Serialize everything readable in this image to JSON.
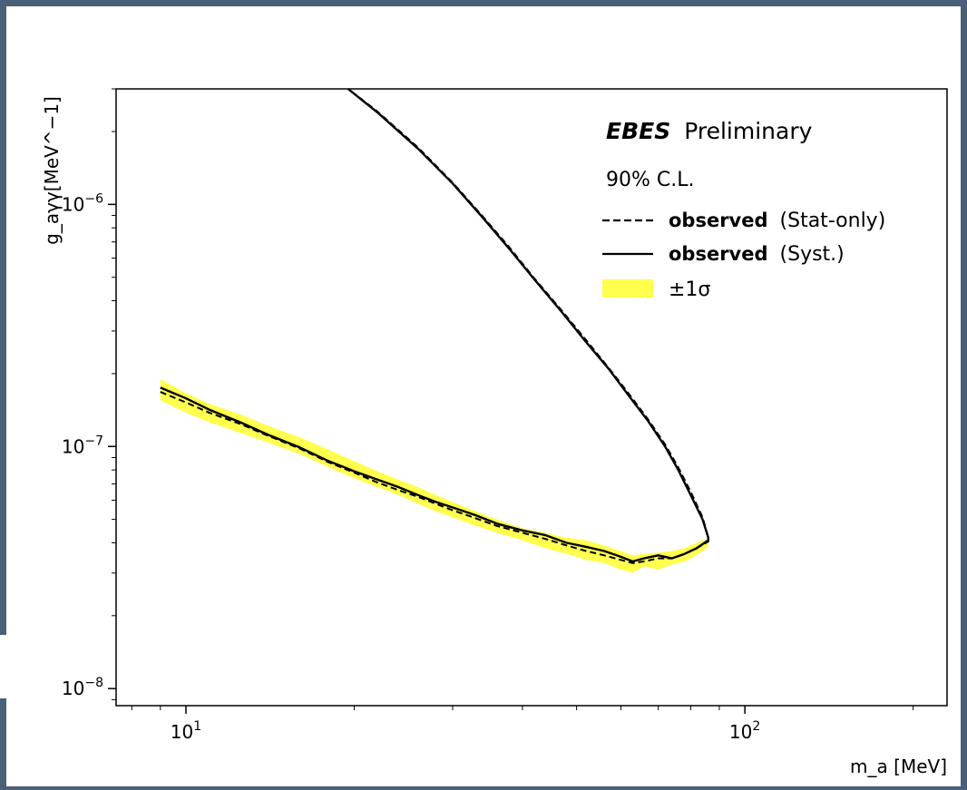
{
  "chart_data": {
    "type": "line",
    "title": "",
    "xlabel": "m_a [MeV]",
    "ylabel": "g_aγγ[MeV^−1]",
    "xscale": "log",
    "yscale": "log",
    "xlim": [
      7.5,
      230
    ],
    "ylim": [
      8.5e-09,
      3e-06
    ],
    "x_ticks": [
      {
        "value": 10,
        "base": "10",
        "exp": "1"
      },
      {
        "value": 100,
        "base": "10",
        "exp": "2"
      }
    ],
    "y_ticks": [
      {
        "value": 1e-06,
        "base": "10",
        "exp": "−6"
      },
      {
        "value": 1e-07,
        "base": "10",
        "exp": "−7"
      },
      {
        "value": 1e-08,
        "base": "10",
        "exp": "−8"
      }
    ],
    "legend": {
      "placement": "top-right",
      "brand": "EBES",
      "brand_suffix": "Preliminary",
      "cl": "90% C.L.",
      "entries": [
        {
          "bold": "observed",
          "rest": "(Stat-only)",
          "style": "dashed"
        },
        {
          "bold": "observed",
          "rest": "(Syst.)",
          "style": "solid"
        },
        {
          "bold": "",
          "rest": "±1σ",
          "style": "band"
        }
      ]
    },
    "colors": {
      "band": "#ffff4d",
      "line": "#000000"
    },
    "series": [
      {
        "x": [
          9,
          10,
          11,
          12.5,
          14,
          16,
          18,
          20,
          22,
          24,
          26,
          28,
          30,
          33,
          36,
          40,
          44,
          48,
          52,
          56,
          60,
          63,
          66,
          70,
          74,
          78,
          81,
          84,
          86
        ],
        "y_low": [
          1.55e-07,
          1.38e-07,
          1.26e-07,
          1.14e-07,
          1.04e-07,
          9.3e-08,
          8.2e-08,
          7.4e-08,
          6.8e-08,
          6.3e-08,
          5.8e-08,
          5.4e-08,
          5.1e-08,
          4.7e-08,
          4.4e-08,
          4.1e-08,
          3.8e-08,
          3.6e-08,
          3.4e-08,
          3.3e-08,
          3.1e-08,
          3e-08,
          3.2e-08,
          3.1e-08,
          3.25e-08,
          3.35e-08,
          3.5e-08,
          3.7e-08,
          3.85e-08
        ],
        "y_high": [
          1.9e-07,
          1.66e-07,
          1.5e-07,
          1.36e-07,
          1.22e-07,
          1.09e-07,
          9.7e-08,
          8.7e-08,
          7.9e-08,
          7.3e-08,
          6.8e-08,
          6.3e-08,
          5.9e-08,
          5.4e-08,
          5e-08,
          4.6e-08,
          4.4e-08,
          4.2e-08,
          4.1e-08,
          3.9e-08,
          3.7e-08,
          3.55e-08,
          3.6e-08,
          3.65e-08,
          3.7e-08,
          3.8e-08,
          3.95e-08,
          4.1e-08,
          4.15e-08
        ]
      },
      {
        "x": [
          9,
          10,
          11,
          12.5,
          14,
          16,
          18,
          20,
          22,
          24,
          26,
          28,
          30,
          33,
          36,
          40,
          44,
          48,
          52,
          56,
          60,
          63,
          66,
          70,
          74,
          78,
          82,
          86,
          86,
          84,
          80,
          76,
          72,
          67,
          62,
          57,
          52,
          47,
          42,
          38,
          34,
          30,
          26,
          22,
          19.5
        ],
        "y": [
          1.75e-07,
          1.58e-07,
          1.42e-07,
          1.26e-07,
          1.12e-07,
          9.9e-08,
          8.7e-08,
          7.9e-08,
          7.3e-08,
          6.8e-08,
          6.3e-08,
          5.9e-08,
          5.6e-08,
          5.2e-08,
          4.8e-08,
          4.5e-08,
          4.3e-08,
          4e-08,
          3.85e-08,
          3.7e-08,
          3.5e-08,
          3.35e-08,
          3.45e-08,
          3.55e-08,
          3.45e-08,
          3.6e-08,
          3.8e-08,
          4.1e-08,
          4.2e-08,
          5e-08,
          6.3e-08,
          8e-08,
          1e-07,
          1.28e-07,
          1.62e-07,
          2.1e-07,
          2.7e-07,
          3.6e-07,
          4.9e-07,
          6.5e-07,
          8.8e-07,
          1.22e-06,
          1.7e-06,
          2.4e-06,
          3e-06
        ]
      },
      {
        "x": [
          9,
          10,
          11,
          12.5,
          14,
          16,
          18,
          20,
          22,
          24,
          26,
          28,
          30,
          33,
          36,
          40,
          44,
          48,
          52,
          56,
          60,
          63,
          66,
          70,
          74,
          78,
          82,
          86,
          86,
          84,
          80,
          76,
          72,
          67,
          62,
          57,
          52,
          47,
          42,
          38,
          34,
          30,
          26,
          22,
          19.5
        ],
        "y": [
          1.68e-07,
          1.52e-07,
          1.38e-07,
          1.24e-07,
          1.11e-07,
          9.8e-08,
          8.6e-08,
          7.8e-08,
          7.1e-08,
          6.6e-08,
          6.2e-08,
          5.8e-08,
          5.45e-08,
          5.05e-08,
          4.7e-08,
          4.4e-08,
          4.15e-08,
          3.9e-08,
          3.7e-08,
          3.55e-08,
          3.4e-08,
          3.3e-08,
          3.35e-08,
          3.45e-08,
          3.45e-08,
          3.6e-08,
          3.8e-08,
          4.05e-08,
          4.2e-08,
          5.1e-08,
          6.5e-08,
          8.2e-08,
          1.02e-07,
          1.3e-07,
          1.65e-07,
          2.12e-07,
          2.75e-07,
          3.65e-07,
          4.95e-07,
          6.6e-07,
          8.9e-07,
          1.23e-06,
          1.72e-06,
          2.42e-06,
          3e-06
        ]
      }
    ]
  }
}
